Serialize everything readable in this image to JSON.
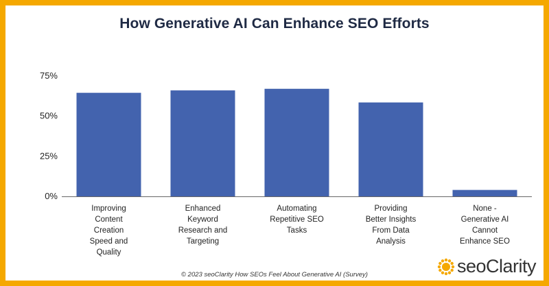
{
  "chart_data": {
    "type": "bar",
    "title": "How Generative AI Can Enhance SEO Efforts",
    "categories": [
      "Improving Content Creation Speed and Quality",
      "Enhanced Keyword Research and Targeting",
      "Automating Repetitive SEO Tasks",
      "Providing Better Insights From Data Analysis",
      "None - Generative AI Cannot Enhance SEO"
    ],
    "category_lines": [
      [
        "Improving",
        "Content",
        "Creation",
        "Speed and",
        "Quality"
      ],
      [
        "Enhanced",
        "Keyword",
        "Research and",
        "Targeting"
      ],
      [
        "Automating",
        "Repetitive SEO",
        "Tasks"
      ],
      [
        "Providing",
        "Better Insights",
        "From Data",
        "Analysis"
      ],
      [
        "None -",
        "Generative AI",
        "Cannot",
        "Enhance SEO"
      ]
    ],
    "values": [
      64.5,
      66,
      67,
      58.5,
      4
    ],
    "yticks": [
      "0%",
      "25%",
      "50%",
      "75%"
    ],
    "ylim": [
      0,
      75
    ],
    "bar_color": "#4363ae",
    "grid": false
  },
  "footer": "© 2023 seoClarity  How SEOs Feel About Generative AI (Survey)",
  "logo": {
    "text_prefix": "seo",
    "text_suffix": "Clarity",
    "color": "#f5a800"
  },
  "frame_color": "#f5a800"
}
